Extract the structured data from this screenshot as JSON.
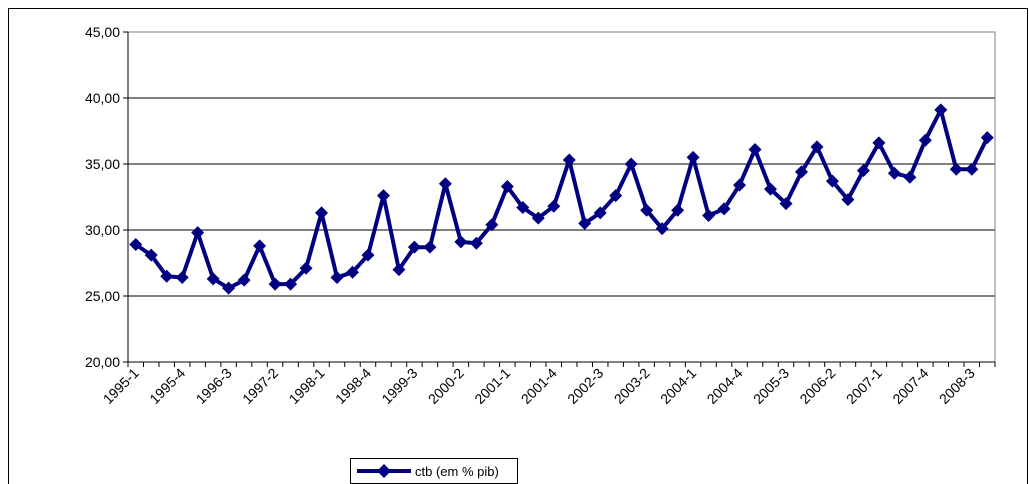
{
  "chart_data": {
    "type": "line",
    "title": "",
    "xlabel": "",
    "ylabel": "",
    "ylim": [
      20,
      45
    ],
    "y_ticks": [
      "20,00",
      "25,00",
      "30,00",
      "35,00",
      "40,00",
      "45,00"
    ],
    "y_tick_values": [
      20,
      25,
      30,
      35,
      40,
      45
    ],
    "grid": "horizontal",
    "legend_position": "bottom",
    "x": [
      "1995-1",
      "1995-2",
      "1995-3",
      "1995-4",
      "1996-1",
      "1996-2",
      "1996-3",
      "1996-4",
      "1997-1",
      "1997-2",
      "1997-3",
      "1997-4",
      "1998-1",
      "1998-2",
      "1998-3",
      "1998-4",
      "1999-1",
      "1999-2",
      "1999-3",
      "1999-4",
      "2000-1",
      "2000-2",
      "2000-3",
      "2000-4",
      "2001-1",
      "2001-2",
      "2001-3",
      "2001-4",
      "2002-1",
      "2002-2",
      "2002-3",
      "2002-4",
      "2003-1",
      "2003-2",
      "2003-3",
      "2003-4",
      "2004-1",
      "2004-2",
      "2004-3",
      "2004-4",
      "2005-1",
      "2005-2",
      "2005-3",
      "2005-4",
      "2006-1",
      "2006-2",
      "2006-3",
      "2006-4",
      "2007-1",
      "2007-2",
      "2007-3",
      "2007-4",
      "2008-1",
      "2008-2",
      "2008-3",
      "2008-4"
    ],
    "x_tick_labels": [
      "1995-1",
      "1995-4",
      "1996-3",
      "1997-2",
      "1998-1",
      "1998-4",
      "1999-3",
      "2000-2",
      "2001-1",
      "2001-4",
      "2002-3",
      "2003-2",
      "2004-1",
      "2004-4",
      "2005-3",
      "2006-2",
      "2007-1",
      "2007-4",
      "2008-3"
    ],
    "series": [
      {
        "name": "ctb (em % pib)",
        "color": "#000080",
        "marker": "diamond",
        "values": [
          28.9,
          28.1,
          26.5,
          26.4,
          29.8,
          26.3,
          25.6,
          26.2,
          28.8,
          25.9,
          25.9,
          27.1,
          31.3,
          26.4,
          26.8,
          28.1,
          32.6,
          27.0,
          28.7,
          28.7,
          33.5,
          29.1,
          29.0,
          30.4,
          33.3,
          31.7,
          30.9,
          31.8,
          35.3,
          30.5,
          31.3,
          32.6,
          35.0,
          31.5,
          30.1,
          31.5,
          35.5,
          31.1,
          31.6,
          33.4,
          36.1,
          33.1,
          32.0,
          34.4,
          36.3,
          33.7,
          32.3,
          34.5,
          36.6,
          34.3,
          34.0,
          36.8,
          39.1,
          34.6,
          34.6,
          37.0
        ]
      }
    ]
  },
  "legend": {
    "label": "ctb (em % pib)"
  }
}
